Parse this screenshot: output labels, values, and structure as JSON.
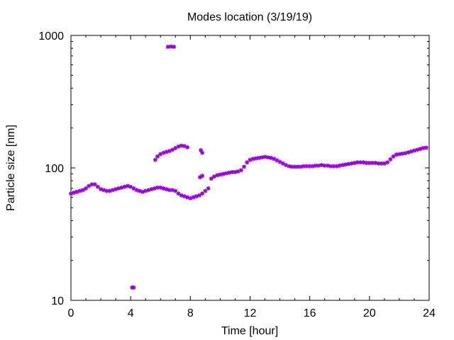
{
  "chart_data": {
    "type": "scatter",
    "title": "Modes location (3/19/19)",
    "xlabel": "Time [hour]",
    "ylabel": "Particle size [nm]",
    "xlim": [
      0,
      24
    ],
    "ylim": [
      10,
      1000
    ],
    "yscale": "log",
    "grid": false,
    "marker_color": "#9400d3",
    "xticks": [
      0,
      4,
      8,
      12,
      16,
      20,
      24
    ],
    "xtick_labels": [
      "0",
      "4",
      "8",
      "12",
      "16",
      "20",
      "24"
    ],
    "yticks": [
      10,
      100,
      1000
    ],
    "ytick_labels": [
      "10",
      "100",
      "1000"
    ],
    "series": [
      {
        "points": [
          [
            0.0,
            64
          ],
          [
            0.2,
            65
          ],
          [
            0.4,
            66
          ],
          [
            0.6,
            67
          ],
          [
            0.8,
            68
          ],
          [
            1.0,
            70
          ],
          [
            1.2,
            73
          ],
          [
            1.4,
            75
          ],
          [
            1.6,
            75
          ],
          [
            1.8,
            72
          ],
          [
            2.0,
            69
          ],
          [
            2.2,
            68
          ],
          [
            2.4,
            67
          ],
          [
            2.6,
            67
          ],
          [
            2.8,
            68
          ],
          [
            3.0,
            69
          ],
          [
            3.2,
            70
          ],
          [
            3.4,
            71
          ],
          [
            3.6,
            72
          ],
          [
            3.8,
            73
          ],
          [
            4.0,
            72
          ],
          [
            4.2,
            70
          ],
          [
            4.4,
            68
          ],
          [
            4.6,
            67
          ],
          [
            4.8,
            66
          ],
          [
            5.0,
            67
          ],
          [
            5.2,
            68
          ],
          [
            5.4,
            69
          ],
          [
            5.6,
            70
          ],
          [
            5.8,
            71
          ],
          [
            6.0,
            71
          ],
          [
            6.2,
            70
          ],
          [
            6.4,
            69
          ],
          [
            6.6,
            68
          ],
          [
            6.8,
            68
          ],
          [
            7.0,
            67
          ],
          [
            7.2,
            64
          ],
          [
            7.4,
            62
          ],
          [
            7.6,
            61
          ],
          [
            7.8,
            60
          ],
          [
            8.0,
            59
          ],
          [
            8.2,
            60
          ],
          [
            8.4,
            61
          ],
          [
            8.6,
            62
          ],
          [
            8.8,
            64
          ],
          [
            9.0,
            67
          ],
          [
            9.2,
            70
          ],
          [
            9.4,
            83
          ],
          [
            9.6,
            86
          ],
          [
            9.8,
            88
          ],
          [
            10.0,
            89
          ],
          [
            10.2,
            90
          ],
          [
            10.4,
            91
          ],
          [
            10.6,
            92
          ],
          [
            10.8,
            93
          ],
          [
            11.0,
            93
          ],
          [
            11.2,
            94
          ],
          [
            11.4,
            96
          ],
          [
            11.6,
            102
          ],
          [
            11.8,
            110
          ],
          [
            12.0,
            115
          ],
          [
            12.2,
            117
          ],
          [
            12.4,
            118
          ],
          [
            12.6,
            119
          ],
          [
            12.8,
            120
          ],
          [
            13.0,
            121
          ],
          [
            13.2,
            120
          ],
          [
            13.4,
            119
          ],
          [
            13.6,
            117
          ],
          [
            13.8,
            114
          ],
          [
            14.0,
            111
          ],
          [
            14.2,
            108
          ],
          [
            14.4,
            105
          ],
          [
            14.6,
            103
          ],
          [
            14.8,
            102
          ],
          [
            15.0,
            102
          ],
          [
            15.2,
            102
          ],
          [
            15.4,
            102
          ],
          [
            15.6,
            103
          ],
          [
            15.8,
            103
          ],
          [
            16.0,
            103
          ],
          [
            16.2,
            103
          ],
          [
            16.4,
            104
          ],
          [
            16.6,
            104
          ],
          [
            16.8,
            105
          ],
          [
            17.0,
            104
          ],
          [
            17.2,
            104
          ],
          [
            17.4,
            103
          ],
          [
            17.6,
            103
          ],
          [
            17.8,
            103
          ],
          [
            18.0,
            104
          ],
          [
            18.2,
            105
          ],
          [
            18.4,
            106
          ],
          [
            18.6,
            107
          ],
          [
            18.8,
            108
          ],
          [
            19.0,
            109
          ],
          [
            19.2,
            110
          ],
          [
            19.4,
            110
          ],
          [
            19.6,
            110
          ],
          [
            19.8,
            109
          ],
          [
            20.0,
            109
          ],
          [
            20.2,
            109
          ],
          [
            20.4,
            109
          ],
          [
            20.6,
            108
          ],
          [
            20.8,
            108
          ],
          [
            21.0,
            108
          ],
          [
            21.2,
            110
          ],
          [
            21.4,
            116
          ],
          [
            21.6,
            122
          ],
          [
            21.8,
            126
          ],
          [
            22.0,
            127
          ],
          [
            22.2,
            128
          ],
          [
            22.4,
            129
          ],
          [
            22.6,
            131
          ],
          [
            22.8,
            133
          ],
          [
            23.0,
            135
          ],
          [
            23.2,
            137
          ],
          [
            23.4,
            139
          ],
          [
            23.6,
            141
          ],
          [
            23.8,
            142
          ],
          [
            5.65,
            115
          ],
          [
            5.8,
            122
          ],
          [
            6.0,
            127
          ],
          [
            6.2,
            130
          ],
          [
            6.4,
            132
          ],
          [
            6.6,
            134
          ],
          [
            6.8,
            137
          ],
          [
            7.0,
            141
          ],
          [
            7.2,
            145
          ],
          [
            7.4,
            147
          ],
          [
            7.6,
            146
          ],
          [
            7.8,
            143
          ],
          [
            8.7,
            136
          ],
          [
            8.8,
            130
          ],
          [
            8.65,
            85
          ],
          [
            8.8,
            87
          ],
          [
            6.5,
            820
          ],
          [
            6.7,
            825
          ],
          [
            6.9,
            820
          ],
          [
            4.1,
            12.5
          ],
          [
            4.2,
            12.5
          ]
        ]
      }
    ]
  }
}
